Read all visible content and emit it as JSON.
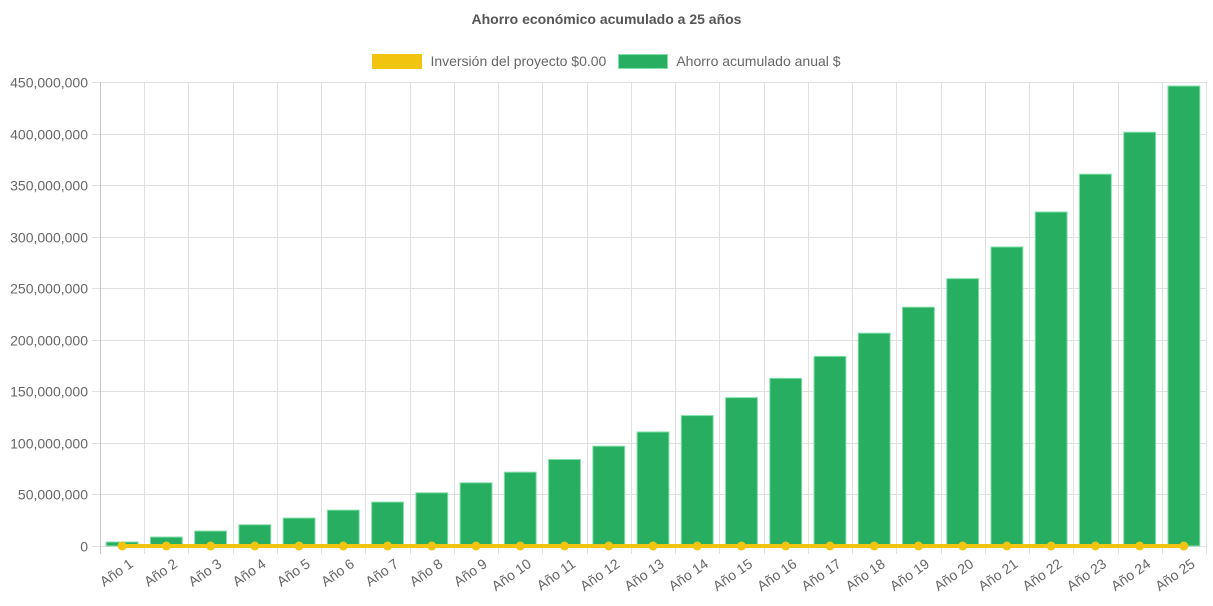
{
  "chart_data": {
    "type": "bar",
    "title": "Ahorro económico acumulado a 25 años",
    "xlabel": "",
    "ylabel": "",
    "ylim": [
      0,
      450000000
    ],
    "yticks": [
      0,
      50000000,
      100000000,
      150000000,
      200000000,
      250000000,
      300000000,
      350000000,
      400000000,
      450000000
    ],
    "ytick_labels": [
      "0",
      "50,000,000",
      "100,000,000",
      "150,000,000",
      "200,000,000",
      "250,000,000",
      "300,000,000",
      "350,000,000",
      "400,000,000",
      "450,000,000"
    ],
    "grid": true,
    "legend_position": "top",
    "categories": [
      "Año 1",
      "Año 2",
      "Año 3",
      "Año 4",
      "Año 5",
      "Año 6",
      "Año 7",
      "Año 8",
      "Año 9",
      "Año 10",
      "Año 11",
      "Año 12",
      "Año 13",
      "Año 14",
      "Año 15",
      "Año 16",
      "Año 17",
      "Año 18",
      "Año 19",
      "Año 20",
      "Año 21",
      "Año 22",
      "Año 23",
      "Año 24",
      "Año 25"
    ],
    "series": [
      {
        "name": "Inversión del proyecto $0.00",
        "type": "line",
        "color": "#F1C40F",
        "values": [
          0,
          0,
          0,
          0,
          0,
          0,
          0,
          0,
          0,
          0,
          0,
          0,
          0,
          0,
          0,
          0,
          0,
          0,
          0,
          0,
          0,
          0,
          0,
          0,
          0
        ]
      },
      {
        "name": "Ahorro acumulado anual $",
        "type": "bar",
        "color": "#27AE60",
        "border_color": "#82E0AA",
        "values": [
          3900000,
          8700000,
          14500000,
          20600000,
          27100000,
          34800000,
          42600000,
          51600000,
          61300000,
          71600000,
          83900000,
          96800000,
          110600000,
          126500000,
          143900000,
          162600000,
          183900000,
          206400000,
          231600000,
          259300000,
          290000000,
          323900000,
          360600000,
          401300000,
          446100000
        ]
      }
    ]
  }
}
